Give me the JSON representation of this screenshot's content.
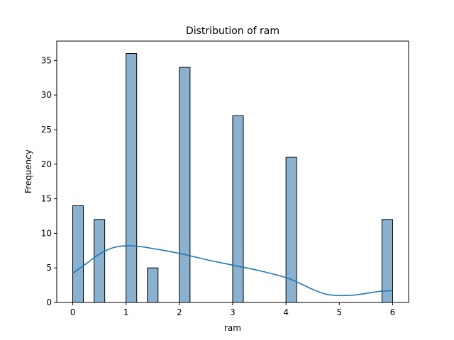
{
  "chart_data": {
    "type": "bar",
    "title": "Distribution of ram",
    "xlabel": "ram",
    "ylabel": "Frequency",
    "xlim": [
      -0.3,
      6.3
    ],
    "ylim": [
      0,
      37.8
    ],
    "xticks": [
      0,
      1,
      2,
      3,
      4,
      5,
      6
    ],
    "yticks": [
      0,
      5,
      10,
      15,
      20,
      25,
      30,
      35
    ],
    "bin_width": 0.2,
    "bins": [
      {
        "x0": 0.0,
        "x1": 0.2,
        "count": 14
      },
      {
        "x0": 0.4,
        "x1": 0.6,
        "count": 12
      },
      {
        "x0": 1.0,
        "x1": 1.2,
        "count": 36
      },
      {
        "x0": 1.4,
        "x1": 1.6,
        "count": 5
      },
      {
        "x0": 2.0,
        "x1": 2.2,
        "count": 34
      },
      {
        "x0": 3.0,
        "x1": 3.2,
        "count": 27
      },
      {
        "x0": 4.0,
        "x1": 4.2,
        "count": 21
      },
      {
        "x0": 5.8,
        "x1": 6.0,
        "count": 12
      }
    ],
    "kde": {
      "x": [
        0.0,
        0.25,
        0.5,
        0.75,
        1.0,
        1.25,
        1.5,
        2.0,
        2.5,
        3.0,
        3.5,
        4.0,
        4.25,
        4.5,
        4.75,
        5.0,
        5.25,
        5.5,
        5.75,
        6.0
      ],
      "y": [
        4.2,
        5.6,
        7.0,
        7.9,
        8.2,
        8.1,
        7.8,
        7.1,
        6.2,
        5.4,
        4.6,
        3.6,
        2.8,
        1.9,
        1.2,
        1.0,
        1.05,
        1.3,
        1.6,
        1.7
      ]
    },
    "colors": {
      "bar": "#8ab2d0",
      "kde": "#1f77b4"
    },
    "grid": false,
    "legend": "none"
  }
}
